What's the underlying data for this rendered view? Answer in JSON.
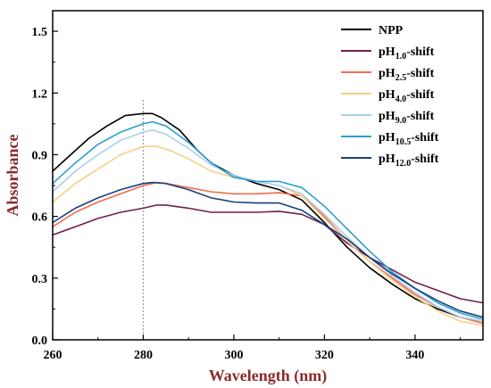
{
  "chart_data": {
    "type": "line",
    "title": "",
    "xlabel": "Wavelength (nm)",
    "ylabel": "Absorbance",
    "label_color": "#8b2b2b",
    "xlim": [
      260,
      355
    ],
    "ylim": [
      0.0,
      1.6
    ],
    "xticks": [
      260,
      280,
      300,
      320,
      340
    ],
    "yticks": [
      0.0,
      0.3,
      0.6,
      0.9,
      1.2,
      1.5
    ],
    "xtick_labels": [
      "260",
      "280",
      "300",
      "320",
      "340"
    ],
    "ytick_labels": [
      "0.0",
      "0.3",
      "0.6",
      "0.9",
      "1.2",
      "1.5"
    ],
    "grid": false,
    "legend_position": "top-right",
    "reference_line": {
      "x": 280,
      "style": "dotted",
      "color": "#999999"
    },
    "series": [
      {
        "name": "NPP",
        "label_base": "NPP",
        "label_sub": "",
        "label_suffix": "",
        "color": "#000000",
        "points": [
          [
            260,
            0.82
          ],
          [
            264,
            0.9
          ],
          [
            268,
            0.98
          ],
          [
            272,
            1.04
          ],
          [
            276,
            1.09
          ],
          [
            280,
            1.1
          ],
          [
            282,
            1.1
          ],
          [
            284,
            1.08
          ],
          [
            288,
            1.02
          ],
          [
            292,
            0.92
          ],
          [
            295,
            0.86
          ],
          [
            300,
            0.8
          ],
          [
            305,
            0.76
          ],
          [
            310,
            0.73
          ],
          [
            315,
            0.68
          ],
          [
            320,
            0.57
          ],
          [
            325,
            0.45
          ],
          [
            330,
            0.35
          ],
          [
            335,
            0.27
          ],
          [
            340,
            0.2
          ],
          [
            345,
            0.15
          ],
          [
            350,
            0.11
          ],
          [
            355,
            0.09
          ]
        ]
      },
      {
        "name": "pH1.0-shift",
        "label_base": "pH",
        "label_sub": "1.0",
        "label_suffix": "-shift",
        "color": "#6e1f4a",
        "points": [
          [
            260,
            0.51
          ],
          [
            265,
            0.55
          ],
          [
            270,
            0.59
          ],
          [
            275,
            0.62
          ],
          [
            280,
            0.64
          ],
          [
            283,
            0.655
          ],
          [
            285,
            0.655
          ],
          [
            290,
            0.64
          ],
          [
            295,
            0.62
          ],
          [
            300,
            0.62
          ],
          [
            305,
            0.62
          ],
          [
            310,
            0.625
          ],
          [
            315,
            0.61
          ],
          [
            320,
            0.56
          ],
          [
            325,
            0.47
          ],
          [
            330,
            0.4
          ],
          [
            335,
            0.34
          ],
          [
            340,
            0.28
          ],
          [
            345,
            0.24
          ],
          [
            350,
            0.2
          ],
          [
            355,
            0.18
          ]
        ]
      },
      {
        "name": "pH2.5-shift",
        "label_base": "pH",
        "label_sub": "2.5",
        "label_suffix": "-shift",
        "color": "#f26b4f",
        "points": [
          [
            260,
            0.55
          ],
          [
            265,
            0.62
          ],
          [
            270,
            0.67
          ],
          [
            275,
            0.71
          ],
          [
            280,
            0.75
          ],
          [
            283,
            0.765
          ],
          [
            285,
            0.76
          ],
          [
            290,
            0.74
          ],
          [
            295,
            0.72
          ],
          [
            300,
            0.71
          ],
          [
            305,
            0.71
          ],
          [
            310,
            0.715
          ],
          [
            315,
            0.7
          ],
          [
            320,
            0.6
          ],
          [
            325,
            0.48
          ],
          [
            330,
            0.38
          ],
          [
            335,
            0.3
          ],
          [
            340,
            0.22
          ],
          [
            345,
            0.16
          ],
          [
            350,
            0.11
          ],
          [
            355,
            0.08
          ]
        ]
      },
      {
        "name": "pH4.0-shift",
        "label_base": "pH",
        "label_sub": "4.0",
        "label_suffix": "-shift",
        "color": "#f7cf87",
        "points": [
          [
            260,
            0.67
          ],
          [
            265,
            0.76
          ],
          [
            270,
            0.83
          ],
          [
            275,
            0.9
          ],
          [
            280,
            0.94
          ],
          [
            283,
            0.94
          ],
          [
            286,
            0.92
          ],
          [
            290,
            0.88
          ],
          [
            295,
            0.82
          ],
          [
            300,
            0.79
          ],
          [
            305,
            0.77
          ],
          [
            310,
            0.75
          ],
          [
            315,
            0.7
          ],
          [
            320,
            0.59
          ],
          [
            325,
            0.48
          ],
          [
            330,
            0.38
          ],
          [
            335,
            0.29
          ],
          [
            340,
            0.21
          ],
          [
            345,
            0.14
          ],
          [
            350,
            0.09
          ],
          [
            355,
            0.07
          ]
        ]
      },
      {
        "name": "pH9.0-shift",
        "label_base": "pH",
        "label_sub": "9.0",
        "label_suffix": "-shift",
        "color": "#a9d0ea",
        "points": [
          [
            260,
            0.72
          ],
          [
            265,
            0.82
          ],
          [
            270,
            0.9
          ],
          [
            275,
            0.97
          ],
          [
            280,
            1.01
          ],
          [
            282,
            1.02
          ],
          [
            285,
            1.0
          ],
          [
            290,
            0.93
          ],
          [
            295,
            0.85
          ],
          [
            300,
            0.8
          ],
          [
            305,
            0.77
          ],
          [
            310,
            0.75
          ],
          [
            315,
            0.71
          ],
          [
            320,
            0.61
          ],
          [
            325,
            0.5
          ],
          [
            330,
            0.4
          ],
          [
            335,
            0.31
          ],
          [
            340,
            0.23
          ],
          [
            345,
            0.16
          ],
          [
            350,
            0.11
          ],
          [
            355,
            0.09
          ]
        ]
      },
      {
        "name": "pH10.5-shift",
        "label_base": "pH",
        "label_sub": "10.5",
        "label_suffix": "-shift",
        "color": "#2c9fd0",
        "points": [
          [
            260,
            0.76
          ],
          [
            265,
            0.86
          ],
          [
            270,
            0.95
          ],
          [
            275,
            1.01
          ],
          [
            280,
            1.05
          ],
          [
            282,
            1.06
          ],
          [
            285,
            1.04
          ],
          [
            290,
            0.96
          ],
          [
            295,
            0.86
          ],
          [
            300,
            0.79
          ],
          [
            305,
            0.77
          ],
          [
            310,
            0.77
          ],
          [
            315,
            0.74
          ],
          [
            320,
            0.65
          ],
          [
            325,
            0.54
          ],
          [
            330,
            0.43
          ],
          [
            335,
            0.33
          ],
          [
            340,
            0.25
          ],
          [
            345,
            0.18
          ],
          [
            350,
            0.13
          ],
          [
            355,
            0.1
          ]
        ]
      },
      {
        "name": "pH12.0-shift",
        "label_base": "pH",
        "label_sub": "12.0",
        "label_suffix": "-shift",
        "color": "#1b3f7c",
        "points": [
          [
            260,
            0.57
          ],
          [
            265,
            0.64
          ],
          [
            270,
            0.69
          ],
          [
            275,
            0.73
          ],
          [
            280,
            0.76
          ],
          [
            282,
            0.765
          ],
          [
            285,
            0.76
          ],
          [
            290,
            0.73
          ],
          [
            295,
            0.69
          ],
          [
            300,
            0.67
          ],
          [
            305,
            0.665
          ],
          [
            310,
            0.665
          ],
          [
            315,
            0.63
          ],
          [
            320,
            0.56
          ],
          [
            325,
            0.49
          ],
          [
            330,
            0.4
          ],
          [
            335,
            0.32
          ],
          [
            340,
            0.25
          ],
          [
            345,
            0.19
          ],
          [
            350,
            0.14
          ],
          [
            355,
            0.11
          ]
        ]
      }
    ]
  }
}
